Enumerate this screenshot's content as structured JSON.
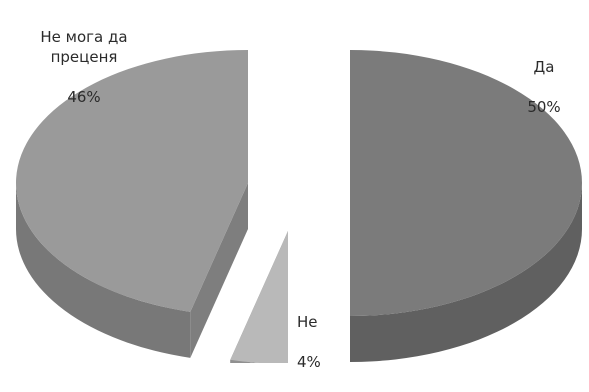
{
  "chart_data": {
    "type": "pie",
    "style": "3d-exploded",
    "slices": [
      {
        "label": "Да",
        "value": 50,
        "value_label": "50%",
        "color": "#7b7b7b"
      },
      {
        "label": "Не",
        "value": 4,
        "value_label": "4%",
        "color": "#b9b9b9"
      },
      {
        "label": "Не мога да\nпреценя",
        "value": 46,
        "value_label": "46%",
        "color": "#9a9a9a"
      }
    ]
  }
}
